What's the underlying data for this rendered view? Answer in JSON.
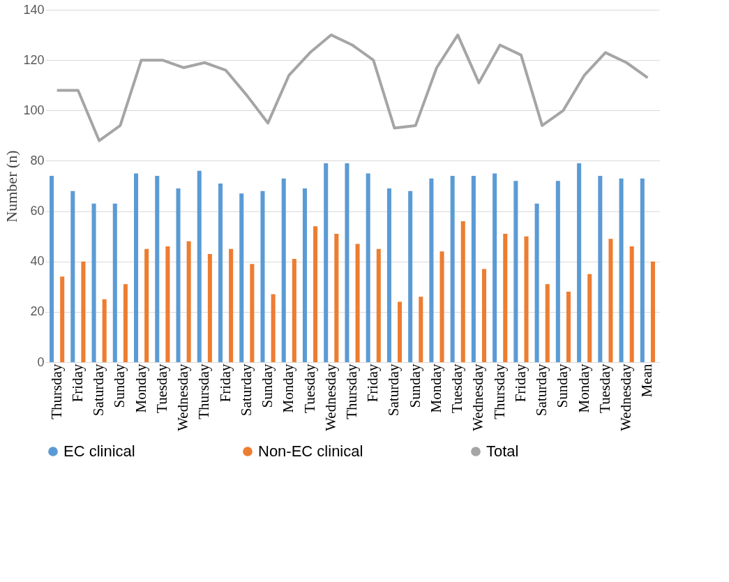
{
  "chart_data": {
    "type": "bar",
    "ylabel": "Number (n)",
    "categories": [
      "Thursday",
      "Friday",
      "Saturday",
      "Sunday",
      "Monday",
      "Tuesday",
      "Wednesday",
      "Thursday",
      "Friday",
      "Saturday",
      "Sunday",
      "Monday",
      "Tuesday",
      "Wednesday",
      "Thursday",
      "Friday",
      "Saturday",
      "Sunday",
      "Monday",
      "Tuesday",
      "Wednesday",
      "Thursday",
      "Friday",
      "Saturday",
      "Sunday",
      "Monday",
      "Tuesday",
      "Wednesday",
      "Mean"
    ],
    "series": [
      {
        "name": "EC clinical",
        "color": "#5b9bd5",
        "values": [
          74,
          68,
          63,
          63,
          75,
          74,
          69,
          76,
          71,
          67,
          68,
          73,
          69,
          79,
          79,
          75,
          69,
          68,
          73,
          74,
          74,
          75,
          72,
          63,
          72,
          79,
          74,
          73,
          73
        ]
      },
      {
        "name": "Non-EC clinical",
        "color": "#ed7d31",
        "values": [
          34,
          40,
          25,
          31,
          45,
          46,
          48,
          43,
          45,
          39,
          27,
          41,
          54,
          51,
          47,
          45,
          24,
          26,
          44,
          56,
          37,
          51,
          50,
          31,
          28,
          35,
          49,
          46,
          40
        ]
      },
      {
        "name": "Total",
        "type": "line",
        "color": "#a5a5a5",
        "values": [
          108,
          108,
          88,
          94,
          120,
          120,
          117,
          119,
          116,
          106,
          95,
          114,
          123,
          130,
          126,
          120,
          93,
          94,
          117,
          130,
          111,
          126,
          122,
          94,
          100,
          114,
          123,
          119,
          113
        ]
      }
    ],
    "ylim": [
      0,
      140
    ],
    "yticks": [
      0,
      20,
      40,
      60,
      80,
      100,
      120,
      140
    ],
    "grid": "y",
    "legend": "bottom",
    "marker": "none",
    "line_style": "solid"
  }
}
